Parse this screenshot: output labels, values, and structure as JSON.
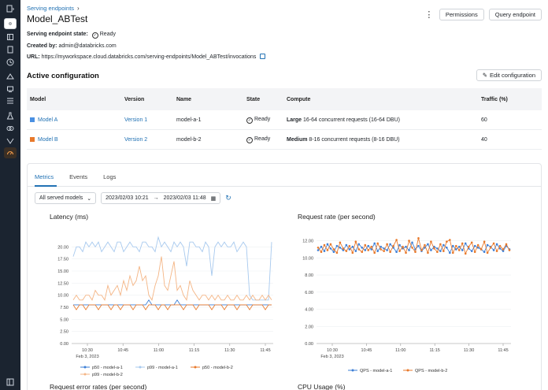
{
  "breadcrumb": "Serving endpoints",
  "page_title": "Model_ABTest",
  "header_buttons": {
    "permissions": "Permissions",
    "query": "Query endpoint"
  },
  "state": {
    "label": "Serving endpoint state:",
    "value": "Ready"
  },
  "created_by": {
    "label": "Created by:",
    "value": "admin@databricks.com"
  },
  "url": {
    "label": "URL:",
    "value": "https://myworkspace.cloud.databricks.com/serving-endpoints/Model_ABTest/invocations"
  },
  "section_title": "Active configuration",
  "edit_button": "Edit configuration",
  "table": {
    "headers": [
      "Model",
      "Version",
      "Name",
      "State",
      "Compute",
      "Traffic (%)"
    ],
    "rows": [
      {
        "model": "Model A",
        "color": "#4a90e2",
        "version": "Version 1",
        "name": "model-a-1",
        "state": "Ready",
        "compute_bold": "Large",
        "compute": "16-64 concurrent requests (16-64 DBU)",
        "traffic": "60"
      },
      {
        "model": "Model B",
        "color": "#e8792b",
        "version": "Version 2",
        "name": "model-b-2",
        "state": "Ready",
        "compute_bold": "Medium",
        "compute": "8-16 concurrent requests (8-16 DBU)",
        "traffic": "40"
      }
    ]
  },
  "tabs": [
    "Metrics",
    "Events",
    "Logs"
  ],
  "filters": {
    "models": "All served models",
    "start": "2023/02/03 10:21",
    "end": "2023/02/03 11:48"
  },
  "charts": {
    "latency": {
      "title": "Latency (ms)"
    },
    "request_rate": {
      "title": "Request rate (per second)"
    },
    "error_rates": {
      "title": "Request error rates (per second)"
    },
    "cpu": {
      "title": "CPU Usage (%)"
    }
  },
  "chart_data": [
    {
      "type": "line",
      "title": "Latency (ms)",
      "xticks": [
        "10:30",
        "10:45",
        "11:00",
        "11:15",
        "11:30",
        "11:45"
      ],
      "x_date_label": "Feb 3, 2023",
      "yticks": [
        "0.00",
        "2.50",
        "5.00",
        "7.50",
        "10.00",
        "12.50",
        "15.00",
        "17.50",
        "20.00"
      ],
      "ylim": [
        0,
        22.5
      ],
      "series": [
        {
          "name": "p50 - model-a-1",
          "color": "#3d7fd6",
          "values": [
            8,
            8,
            8,
            8,
            8,
            8,
            8,
            8,
            8,
            8,
            8,
            8,
            8,
            8,
            8,
            8,
            8,
            8,
            8,
            8,
            8,
            8,
            8,
            8,
            9,
            8,
            8,
            8,
            8,
            8,
            8,
            8,
            8,
            9,
            8,
            8,
            8,
            8,
            8,
            8,
            8,
            8,
            8,
            8,
            8,
            8,
            8,
            8,
            8,
            8,
            8,
            8,
            8,
            8,
            8,
            8,
            8,
            8,
            8,
            8,
            8,
            8,
            8,
            8
          ]
        },
        {
          "name": "p99 - model-a-1",
          "color": "#a7c9ee",
          "values": [
            18,
            20,
            20,
            19,
            21,
            20,
            21,
            20,
            21,
            19,
            20,
            21,
            20,
            19,
            21,
            21,
            19,
            20,
            21,
            20,
            20,
            19,
            21,
            21,
            20,
            20,
            19,
            22,
            20,
            21,
            20,
            19,
            21,
            20,
            21,
            20,
            16,
            21,
            21,
            20,
            20,
            19,
            21,
            20,
            14,
            20,
            21,
            20,
            21,
            20,
            20,
            21,
            19,
            20,
            21,
            20,
            10,
            9,
            9,
            9,
            9,
            9,
            9,
            21
          ]
        },
        {
          "name": "p50 - model-b-2",
          "color": "#e8792b",
          "values": [
            8,
            7,
            8,
            8,
            7,
            8,
            8,
            8,
            7,
            8,
            8,
            8,
            7,
            8,
            8,
            7,
            8,
            8,
            8,
            7,
            8,
            8,
            8,
            7,
            8,
            8,
            8,
            7,
            8,
            8,
            7,
            8,
            8,
            8,
            8,
            7,
            8,
            8,
            8,
            7,
            8,
            8,
            8,
            8,
            7,
            8,
            8,
            8,
            7,
            8,
            8,
            8,
            7,
            8,
            8,
            8,
            7,
            8,
            8,
            8,
            8,
            7,
            8,
            8
          ]
        },
        {
          "name": "p99 - model-b-2",
          "color": "#f4b585",
          "values": [
            9,
            10,
            9,
            9,
            10,
            10,
            9,
            11,
            10,
            10,
            9,
            12,
            10,
            11,
            12,
            10,
            13,
            11,
            14,
            12,
            13,
            16,
            13,
            14,
            10,
            9,
            12,
            14,
            18,
            12,
            11,
            14,
            17,
            11,
            12,
            10,
            9,
            13,
            11,
            10,
            9,
            10,
            10,
            9,
            10,
            9,
            10,
            9,
            9,
            10,
            9,
            9,
            10,
            9,
            9,
            10,
            9,
            10,
            9,
            9,
            10,
            9,
            10,
            9
          ]
        }
      ]
    },
    {
      "type": "line",
      "title": "Request rate (per second)",
      "xticks": [
        "10:30",
        "10:45",
        "11:00",
        "11:15",
        "11:30",
        "11:45"
      ],
      "x_date_label": "Feb 3, 2023",
      "yticks": [
        "0.00",
        "2.00",
        "4.00",
        "6.00",
        "8.00",
        "10.00",
        "12.00"
      ],
      "ylim": [
        0,
        12.7
      ],
      "series": [
        {
          "name": "QPS - model-a-1",
          "color": "#3d7fd6",
          "values": [
            10.9,
            11.3,
            10.8,
            11.6,
            11.1,
            10.7,
            11.4,
            11.2,
            10.9,
            11.5,
            11.0,
            11.3,
            10.8,
            11.6,
            11.2,
            10.9,
            11.4,
            11.0,
            11.7,
            10.8,
            11.3,
            11.1,
            10.9,
            11.6,
            11.2,
            10.7,
            11.5,
            11.1,
            11.3,
            10.9,
            11.8,
            11.0,
            11.4,
            10.8,
            11.2,
            11.6,
            10.9,
            11.3,
            11.1,
            10.8,
            11.5,
            11.2,
            10.6,
            11.4,
            11.0,
            11.3,
            10.9,
            11.7,
            11.1,
            10.8,
            11.4,
            11.2,
            11.0,
            10.7,
            11.5,
            11.3,
            10.9,
            11.6,
            11.1,
            10.8,
            11.4,
            11.0
          ]
        },
        {
          "name": "QPS - model-b-2",
          "color": "#e8792b",
          "values": [
            11.2,
            10.7,
            11.5,
            10.9,
            11.6,
            11.0,
            10.6,
            11.8,
            11.1,
            10.8,
            11.4,
            10.6,
            11.9,
            11.0,
            10.7,
            11.5,
            10.9,
            11.3,
            10.6,
            11.7,
            11.0,
            10.8,
            11.6,
            10.7,
            11.4,
            12.1,
            10.8,
            11.3,
            10.6,
            12.0,
            11.2,
            10.7,
            12.3,
            10.9,
            11.5,
            10.6,
            11.9,
            11.1,
            10.7,
            11.6,
            10.8,
            11.9,
            12.1,
            10.6,
            11.4,
            10.9,
            11.7,
            10.5,
            11.3,
            11.8,
            10.7,
            11.5,
            11.0,
            11.9,
            10.6,
            11.2,
            11.7,
            10.8,
            11.4,
            11.0,
            11.6,
            10.9
          ]
        }
      ]
    }
  ]
}
